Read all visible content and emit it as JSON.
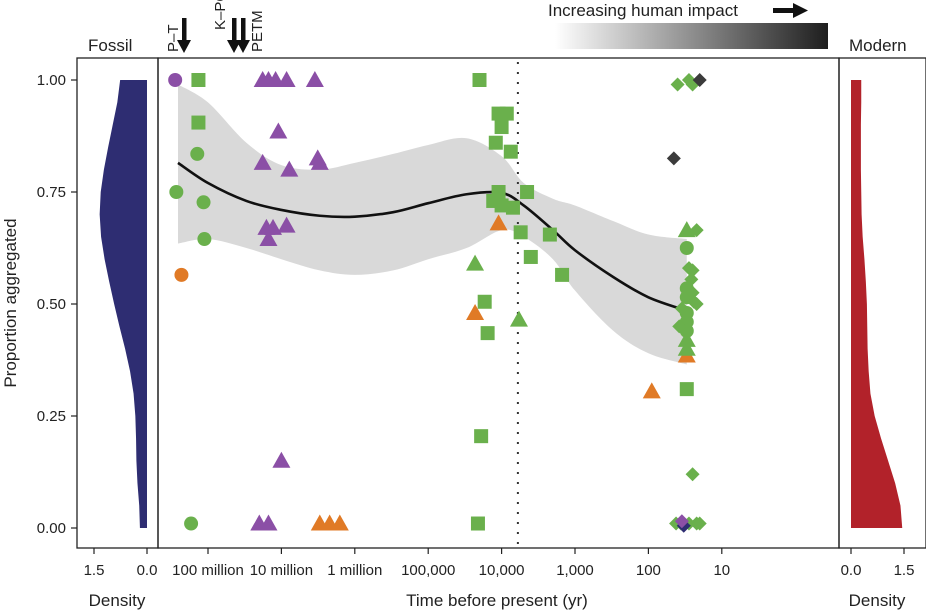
{
  "chart_data": {
    "type": "scatter",
    "title": "",
    "ylabel": "Proportion aggregated",
    "xlabel": "Time before present (yr)",
    "x_scale": "log-reversed",
    "xlim": [
      300000000,
      10
    ],
    "ylim": [
      0,
      1
    ],
    "y_ticks": [
      {
        "value": 0,
        "label": "0.00"
      },
      {
        "value": 0.25,
        "label": "0.25"
      },
      {
        "value": 0.5,
        "label": "0.50"
      },
      {
        "value": 0.75,
        "label": "0.75"
      },
      {
        "value": 1,
        "label": "1.00"
      }
    ],
    "x_ticks": [
      {
        "value": 100000000,
        "label": "100 million"
      },
      {
        "value": 10000000,
        "label": "10 million"
      },
      {
        "value": 1000000,
        "label": "1 million"
      },
      {
        "value": 100000,
        "label": "100,000"
      },
      {
        "value": 10000,
        "label": "10,000"
      },
      {
        "value": 1000,
        "label": "1,000"
      },
      {
        "value": 100,
        "label": "100"
      },
      {
        "value": 10,
        "label": "10"
      }
    ],
    "grid": false,
    "events": [
      {
        "label": "P–T",
        "time": 252000000
      },
      {
        "label": "K–PG",
        "time": 66000000
      },
      {
        "label": "PETM",
        "time": 56000000
      }
    ],
    "dotted_reference_line_time": 6000,
    "gradient_label": "Increasing human impact",
    "gradient_range": [
      50000,
      12
    ],
    "colors": {
      "purple": "#8b4fa6",
      "green": "#6ab04c",
      "orange": "#e07a26",
      "dark": "#3b3b3b",
      "navy": "#2e2d72",
      "fossil_density": "#2e2d72",
      "modern_density": "#b2222a",
      "ci_band": "#d9d9d9",
      "trend": "#111111"
    },
    "trend_line": {
      "x": [
        300000000,
        100000000,
        30000000,
        10000000,
        3000000,
        1000000,
        300000,
        100000,
        30000,
        10000,
        5000,
        2000,
        1000,
        300,
        100,
        30
      ],
      "y": [
        0.815,
        0.77,
        0.73,
        0.71,
        0.697,
        0.695,
        0.705,
        0.725,
        0.745,
        0.748,
        0.72,
        0.665,
        0.62,
        0.56,
        0.515,
        0.485
      ]
    },
    "ci_band": {
      "x": [
        300000000,
        100000000,
        30000000,
        10000000,
        3000000,
        1000000,
        300000,
        100000,
        30000,
        10000,
        5000,
        2000,
        1000,
        300,
        100,
        30
      ],
      "upper": [
        0.99,
        0.95,
        0.86,
        0.81,
        0.8,
        0.815,
        0.835,
        0.855,
        0.87,
        0.83,
        0.77,
        0.735,
        0.72,
        0.685,
        0.655,
        0.645
      ],
      "lower": [
        0.635,
        0.645,
        0.625,
        0.6,
        0.575,
        0.565,
        0.575,
        0.6,
        0.625,
        0.665,
        0.65,
        0.6,
        0.53,
        0.44,
        0.39,
        0.365
      ]
    },
    "series": [
      {
        "name": "purple-circle",
        "color": "purple",
        "shape": "circle",
        "points": [
          [
            280000000,
            1.0
          ]
        ]
      },
      {
        "name": "green-circle",
        "color": "green",
        "shape": "circle",
        "points": [
          [
            270000000,
            0.75
          ],
          [
            140000000,
            0.835
          ],
          [
            115000000,
            0.727
          ],
          [
            112000000,
            0.645
          ],
          [
            170000000,
            0.01
          ],
          [
            30,
            0.625
          ],
          [
            30,
            0.535
          ],
          [
            30,
            0.515
          ],
          [
            30,
            0.48
          ],
          [
            30,
            0.46
          ],
          [
            30,
            0.44
          ]
        ]
      },
      {
        "name": "orange-circle",
        "color": "orange",
        "shape": "circle",
        "points": [
          [
            230000000,
            0.565
          ]
        ]
      },
      {
        "name": "green-square",
        "color": "green",
        "shape": "square",
        "points": [
          [
            135000000,
            1.0
          ],
          [
            135000000,
            0.905
          ],
          [
            20000,
            1.0
          ],
          [
            11000,
            0.925
          ],
          [
            8500,
            0.925
          ],
          [
            10000,
            0.895
          ],
          [
            12000,
            0.86
          ],
          [
            7500,
            0.84
          ],
          [
            11000,
            0.75
          ],
          [
            13000,
            0.73
          ],
          [
            10000,
            0.72
          ],
          [
            7000,
            0.715
          ],
          [
            4500,
            0.75
          ],
          [
            5500,
            0.66
          ],
          [
            2200,
            0.655
          ],
          [
            4000,
            0.605
          ],
          [
            1500,
            0.565
          ],
          [
            17000,
            0.505
          ],
          [
            15500,
            0.435
          ],
          [
            19000,
            0.205
          ],
          [
            21000,
            0.01
          ],
          [
            30,
            0.31
          ]
        ]
      },
      {
        "name": "purple-triangle",
        "color": "purple",
        "shape": "triangle",
        "points": [
          [
            18000000,
            1.0
          ],
          [
            15000000,
            1.0
          ],
          [
            12000000,
            1.0
          ],
          [
            8500000,
            1.0
          ],
          [
            3500000,
            1.0
          ],
          [
            11000000,
            0.885
          ],
          [
            18000000,
            0.815
          ],
          [
            7800000,
            0.8
          ],
          [
            3000000,
            0.815
          ],
          [
            3200000,
            0.825
          ],
          [
            16000000,
            0.67
          ],
          [
            13000000,
            0.67
          ],
          [
            8500000,
            0.675
          ],
          [
            15000000,
            0.645
          ],
          [
            10000000,
            0.15
          ],
          [
            20000000,
            0.01
          ],
          [
            15000000,
            0.01
          ]
        ]
      },
      {
        "name": "orange-triangle",
        "color": "orange",
        "shape": "triangle",
        "points": [
          [
            3000000,
            0.01
          ],
          [
            2200000,
            0.01
          ],
          [
            1600000,
            0.01
          ],
          [
            11000,
            0.68
          ],
          [
            23000,
            0.48
          ],
          [
            90,
            0.305
          ],
          [
            30,
            0.385
          ]
        ]
      },
      {
        "name": "green-triangle",
        "color": "green",
        "shape": "triangle",
        "points": [
          [
            23000,
            0.59
          ],
          [
            5800,
            0.465
          ],
          [
            30,
            0.665
          ],
          [
            30,
            0.42
          ],
          [
            30,
            0.4
          ]
        ]
      },
      {
        "name": "green-diamond",
        "color": "green",
        "shape": "diamond",
        "points": [
          [
            40,
            0.99
          ],
          [
            28,
            1.0
          ],
          [
            25,
            0.99
          ],
          [
            22,
            0.665
          ],
          [
            28,
            0.58
          ],
          [
            25,
            0.575
          ],
          [
            26,
            0.555
          ],
          [
            25,
            0.525
          ],
          [
            24,
            0.505
          ],
          [
            35,
            0.49
          ],
          [
            22,
            0.5
          ],
          [
            38,
            0.45
          ],
          [
            25,
            0.12
          ],
          [
            42,
            0.01
          ],
          [
            36,
            0.01
          ],
          [
            28,
            0.01
          ],
          [
            22,
            0.01
          ],
          [
            20,
            0.01
          ]
        ]
      },
      {
        "name": "dark-diamond",
        "color": "dark",
        "shape": "diamond",
        "points": [
          [
            20,
            1.0
          ],
          [
            45,
            0.825
          ]
        ]
      },
      {
        "name": "navy-diamond",
        "color": "navy",
        "shape": "diamond",
        "points": [
          [
            33,
            0.005
          ]
        ]
      },
      {
        "name": "purple-diamond",
        "color": "purple",
        "shape": "diamond",
        "points": [
          [
            35,
            0.015
          ]
        ]
      }
    ],
    "fossil_panel": {
      "title": "Fossil",
      "xlabel": "Density",
      "x_ticks": [
        {
          "value": 1.5,
          "label": "1.5"
        },
        {
          "value": 0.0,
          "label": "0.0"
        }
      ],
      "density": {
        "y": [
          0,
          0.05,
          0.1,
          0.15,
          0.2,
          0.25,
          0.3,
          0.35,
          0.4,
          0.45,
          0.5,
          0.55,
          0.6,
          0.65,
          0.7,
          0.75,
          0.8,
          0.85,
          0.9,
          0.95,
          1.0
        ],
        "value": [
          0.2,
          0.22,
          0.27,
          0.3,
          0.31,
          0.33,
          0.38,
          0.48,
          0.62,
          0.78,
          0.93,
          1.07,
          1.2,
          1.3,
          1.34,
          1.31,
          1.22,
          1.1,
          0.97,
          0.84,
          0.76
        ]
      }
    },
    "modern_panel": {
      "title": "Modern",
      "xlabel": "Density",
      "x_ticks": [
        {
          "value": 0.0,
          "label": "0.0"
        },
        {
          "value": 1.5,
          "label": "1.5"
        }
      ],
      "density": {
        "y": [
          0,
          0.05,
          0.1,
          0.15,
          0.2,
          0.25,
          0.3,
          0.35,
          0.4,
          0.45,
          0.5,
          0.55,
          0.6,
          0.65,
          0.7,
          0.75,
          0.8,
          0.85,
          0.9,
          0.95,
          1.0
        ],
        "value": [
          1.45,
          1.4,
          1.25,
          1.05,
          0.85,
          0.67,
          0.55,
          0.5,
          0.47,
          0.46,
          0.45,
          0.42,
          0.38,
          0.33,
          0.3,
          0.29,
          0.28,
          0.28,
          0.28,
          0.29,
          0.29
        ]
      }
    }
  }
}
